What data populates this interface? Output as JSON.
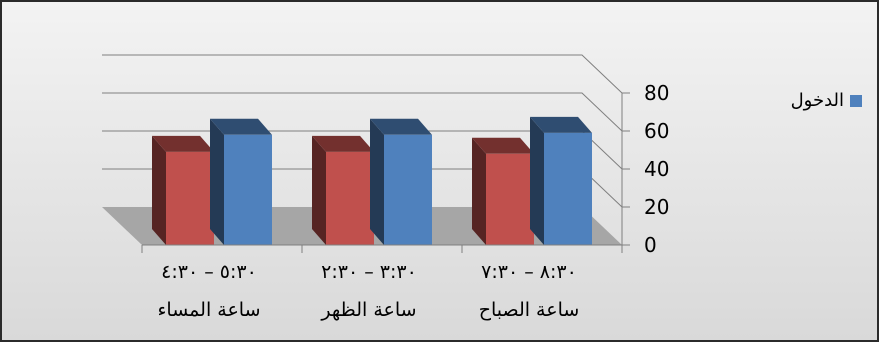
{
  "chart_data": {
    "type": "bar",
    "categories": [
      {
        "time": "٨:٣٠ – ٧:٣٠",
        "label": "ساعة الصباح"
      },
      {
        "time": "٣:٣٠ – ٢:٣٠",
        "label": "ساعة الظهر"
      },
      {
        "time": "٥:٣٠ – ٤:٣٠",
        "label": "ساعة المساء"
      }
    ],
    "series": [
      {
        "values": [
          48,
          49,
          49
        ],
        "color": "#c0504d"
      },
      {
        "name": "الدخول",
        "values": [
          59,
          58,
          58
        ],
        "color": "#4f81bd"
      }
    ],
    "ylim": [
      0,
      80
    ],
    "yticks": [
      0,
      20,
      40,
      60,
      80
    ],
    "grid": true,
    "legend": "right"
  }
}
